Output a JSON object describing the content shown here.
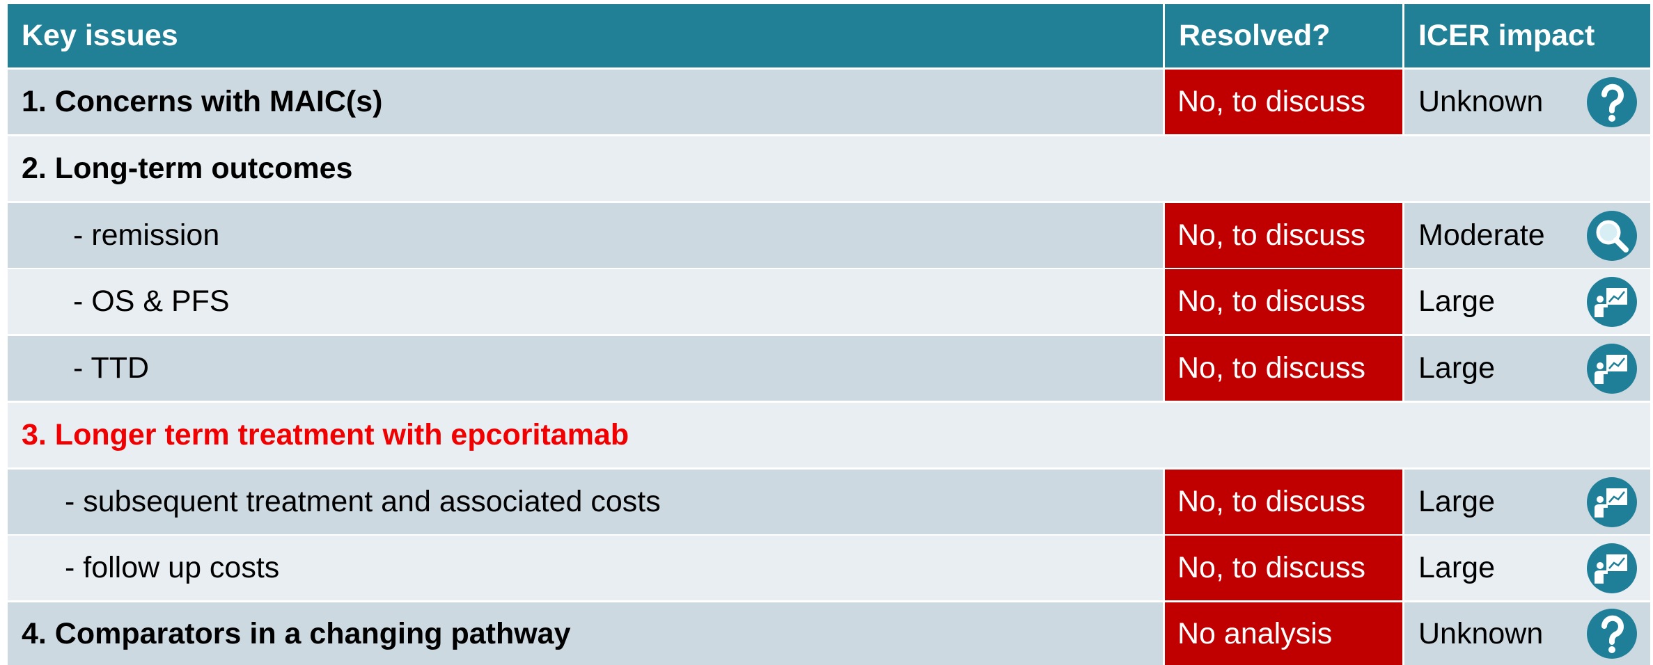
{
  "header": {
    "columns": [
      "Key issues",
      "Resolved?",
      "ICER impact"
    ]
  },
  "rows": [
    {
      "issue": "1. Concerns with MAIC(s)",
      "resolved": "No, to discuss",
      "impact": "Unknown"
    },
    {
      "issue": "2. Long-term outcomes"
    },
    {
      "issue": "- remission",
      "resolved": "No, to discuss",
      "impact": "Moderate"
    },
    {
      "issue": "- OS & PFS",
      "resolved": "No, to discuss",
      "impact": "Large"
    },
    {
      "issue": "- TTD",
      "resolved": "No, to discuss",
      "impact": "Large"
    },
    {
      "issue": "3. Longer term treatment with epcoritamab"
    },
    {
      "issue": "- subsequent treatment and associated costs",
      "resolved": "No, to discuss",
      "impact": "Large"
    },
    {
      "issue": "- follow up costs",
      "resolved": "No, to discuss",
      "impact": "Large"
    },
    {
      "issue": "4. Comparators in a changing pathway",
      "resolved": "No analysis",
      "impact": "Unknown"
    }
  ]
}
